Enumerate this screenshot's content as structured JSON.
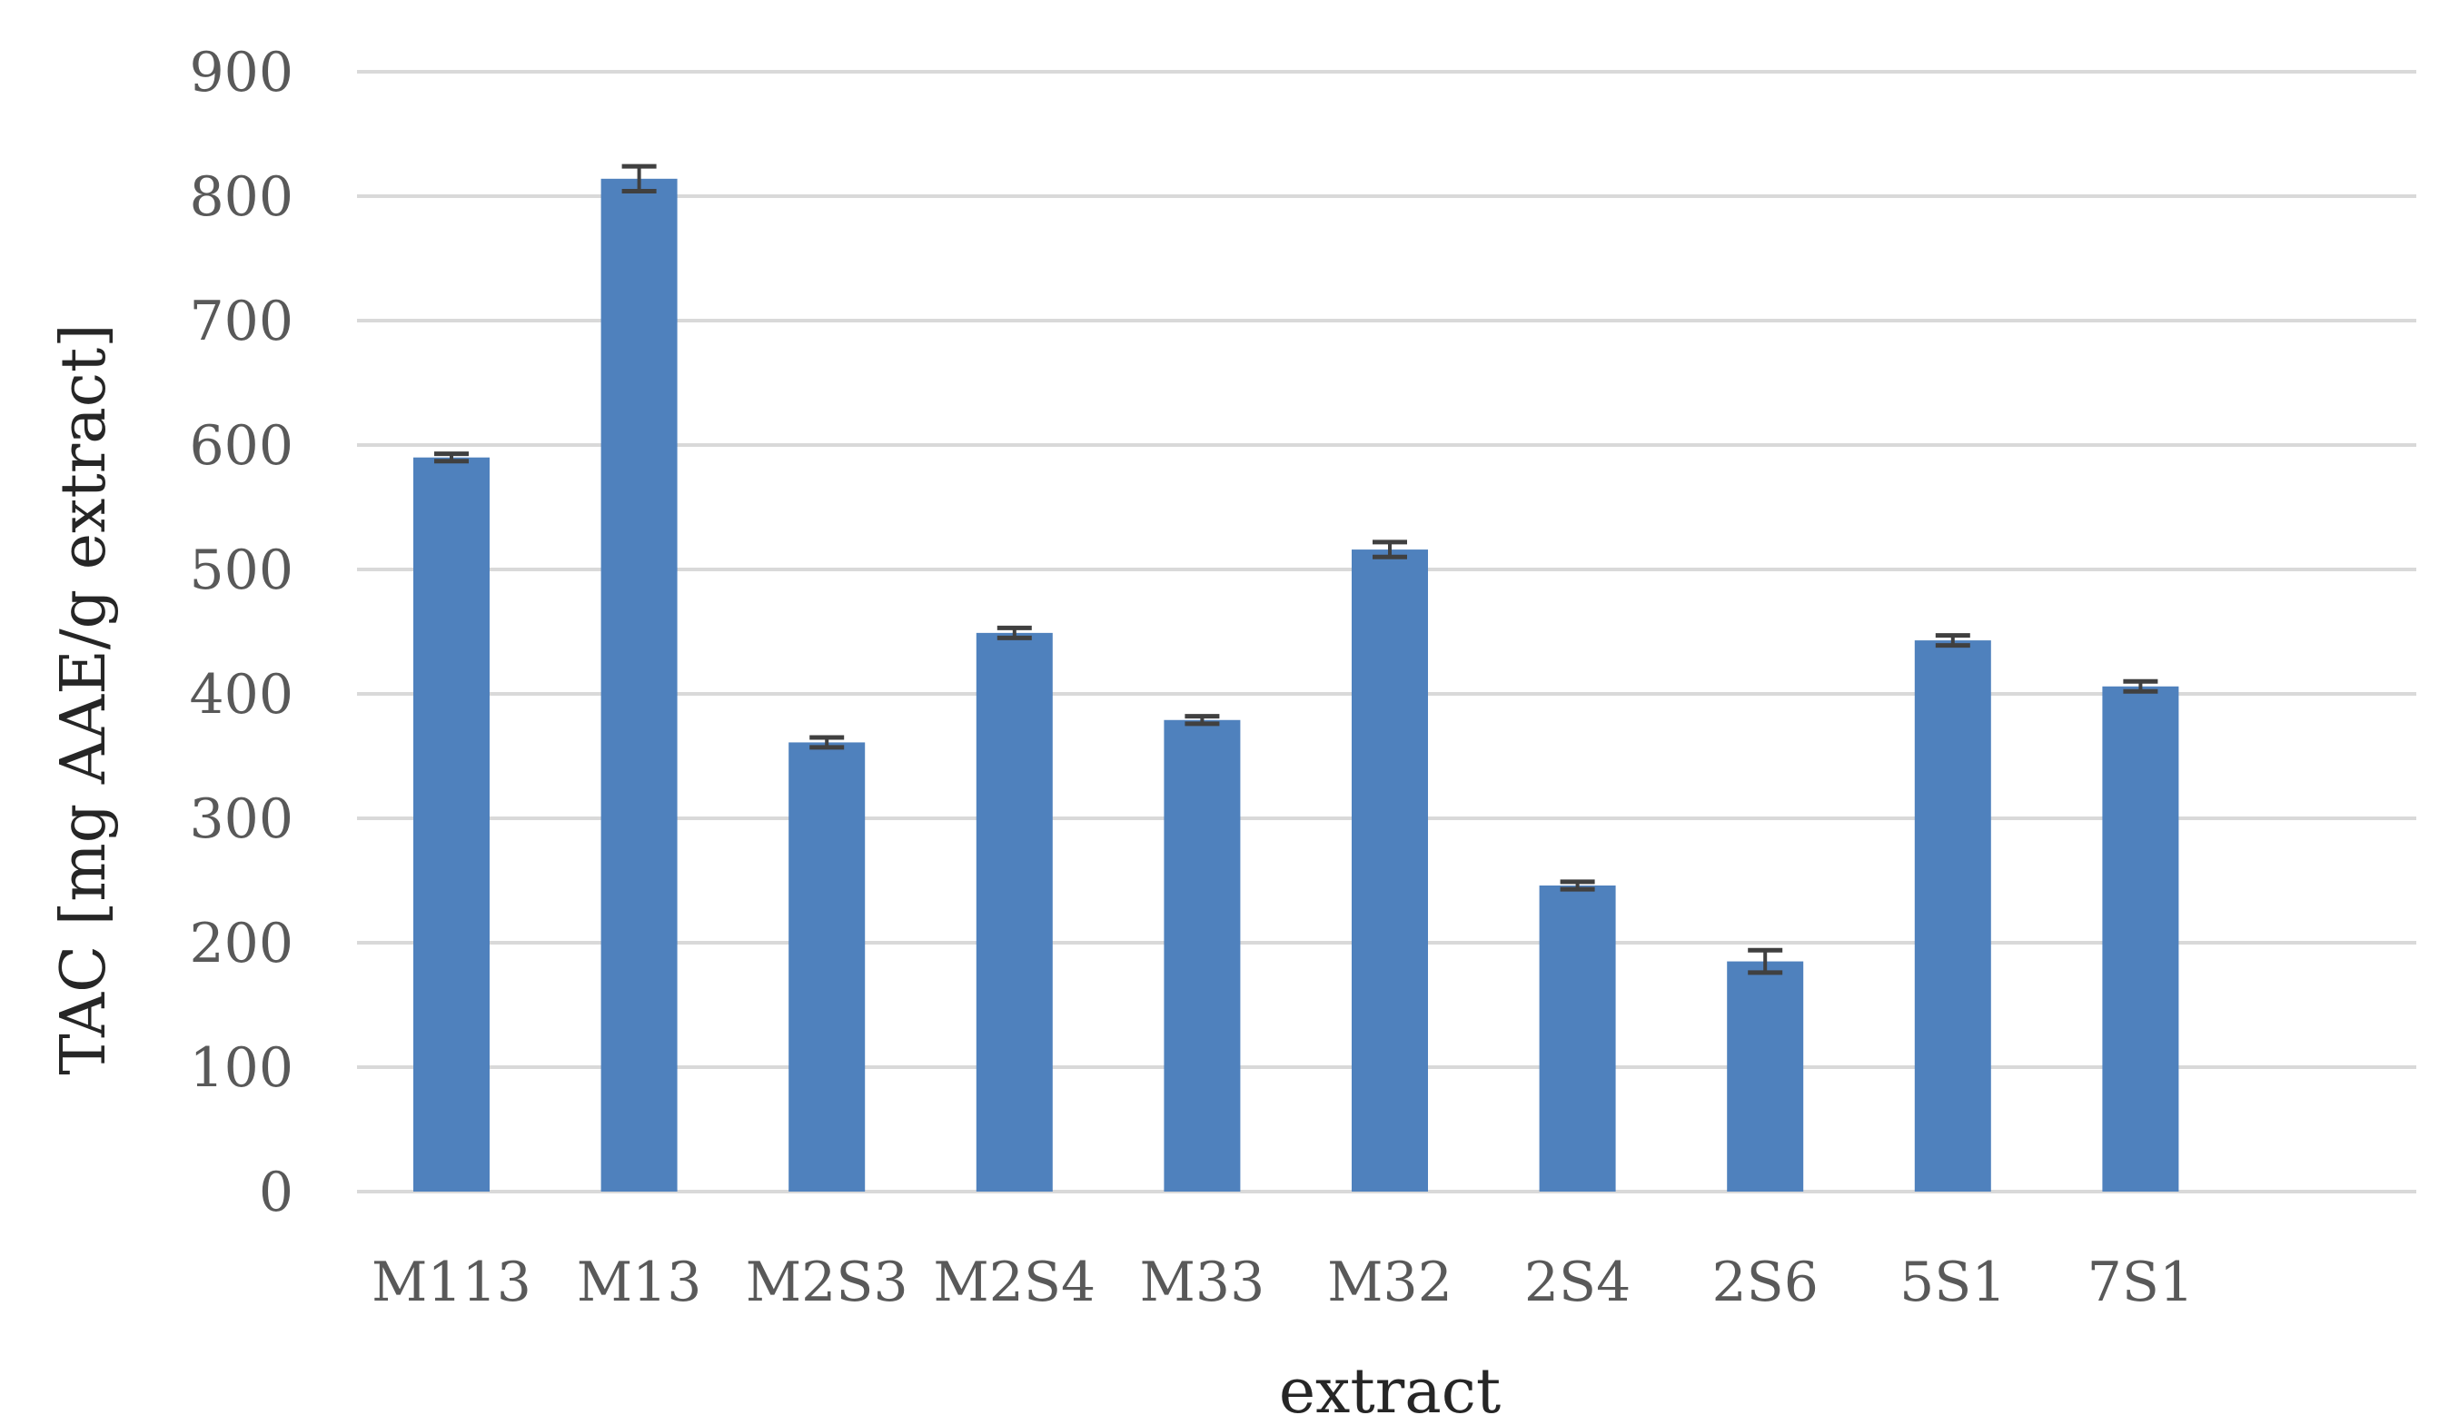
{
  "chart_data": {
    "type": "bar",
    "title": "",
    "xlabel": "extract",
    "ylabel": "TAC [mg AAE/g extract]",
    "categories": [
      "M113",
      "M13",
      "M2S3",
      "M2S4",
      "M33",
      "M32",
      "2S4",
      "2S6",
      "5S1",
      "7S1"
    ],
    "values": [
      590,
      814,
      361,
      449,
      379,
      516,
      246,
      185,
      443,
      406
    ],
    "errors": [
      3,
      10,
      4,
      4,
      3,
      6,
      3,
      9,
      4,
      4
    ],
    "ylim": [
      0,
      900
    ],
    "yticks": [
      0,
      100,
      200,
      300,
      400,
      500,
      600,
      700,
      800,
      900
    ],
    "grid": true,
    "legend": "none",
    "colors": {
      "bar": "#4F81BD",
      "error_bar": "#404040",
      "grid": "#D9D9D9",
      "tick_text": "#595959",
      "axis_title": "#262626"
    }
  }
}
